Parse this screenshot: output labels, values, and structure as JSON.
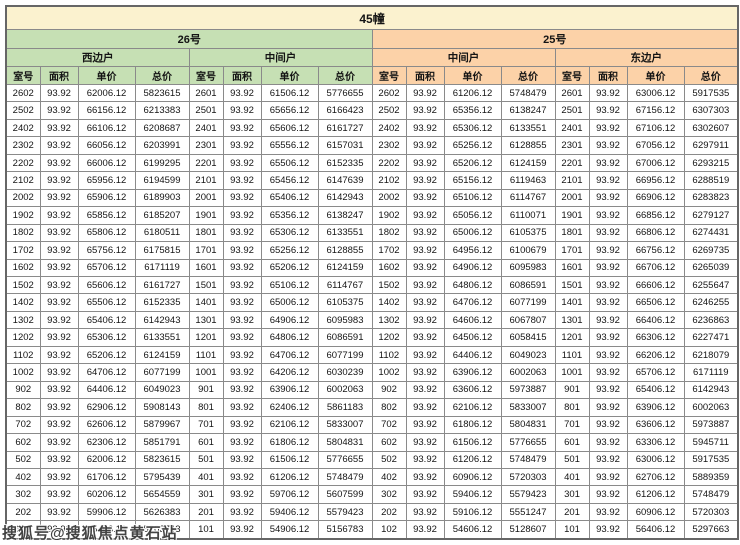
{
  "title": "45幢",
  "sections": [
    {
      "label": "26号",
      "groups": [
        "西边户",
        "中间户"
      ]
    },
    {
      "label": "25号",
      "groups": [
        "中间户",
        "东边户"
      ]
    }
  ],
  "column_headers": [
    "室号",
    "面积",
    "单价",
    "总价"
  ],
  "rows": [
    [
      "2602",
      "93.92",
      "62006.12",
      "5823615",
      "2601",
      "93.92",
      "61506.12",
      "5776655",
      "2602",
      "93.92",
      "61206.12",
      "5748479",
      "2601",
      "93.92",
      "63006.12",
      "5917535"
    ],
    [
      "2502",
      "93.92",
      "66156.12",
      "6213383",
      "2501",
      "93.92",
      "65656.12",
      "6166423",
      "2502",
      "93.92",
      "65356.12",
      "6138247",
      "2501",
      "93.92",
      "67156.12",
      "6307303"
    ],
    [
      "2402",
      "93.92",
      "66106.12",
      "6208687",
      "2401",
      "93.92",
      "65606.12",
      "6161727",
      "2402",
      "93.92",
      "65306.12",
      "6133551",
      "2401",
      "93.92",
      "67106.12",
      "6302607"
    ],
    [
      "2302",
      "93.92",
      "66056.12",
      "6203991",
      "2301",
      "93.92",
      "65556.12",
      "6157031",
      "2302",
      "93.92",
      "65256.12",
      "6128855",
      "2301",
      "93.92",
      "67056.12",
      "6297911"
    ],
    [
      "2202",
      "93.92",
      "66006.12",
      "6199295",
      "2201",
      "93.92",
      "65506.12",
      "6152335",
      "2202",
      "93.92",
      "65206.12",
      "6124159",
      "2201",
      "93.92",
      "67006.12",
      "6293215"
    ],
    [
      "2102",
      "93.92",
      "65956.12",
      "6194599",
      "2101",
      "93.92",
      "65456.12",
      "6147639",
      "2102",
      "93.92",
      "65156.12",
      "6119463",
      "2101",
      "93.92",
      "66956.12",
      "6288519"
    ],
    [
      "2002",
      "93.92",
      "65906.12",
      "6189903",
      "2001",
      "93.92",
      "65406.12",
      "6142943",
      "2002",
      "93.92",
      "65106.12",
      "6114767",
      "2001",
      "93.92",
      "66906.12",
      "6283823"
    ],
    [
      "1902",
      "93.92",
      "65856.12",
      "6185207",
      "1901",
      "93.92",
      "65356.12",
      "6138247",
      "1902",
      "93.92",
      "65056.12",
      "6110071",
      "1901",
      "93.92",
      "66856.12",
      "6279127"
    ],
    [
      "1802",
      "93.92",
      "65806.12",
      "6180511",
      "1801",
      "93.92",
      "65306.12",
      "6133551",
      "1802",
      "93.92",
      "65006.12",
      "6105375",
      "1801",
      "93.92",
      "66806.12",
      "6274431"
    ],
    [
      "1702",
      "93.92",
      "65756.12",
      "6175815",
      "1701",
      "93.92",
      "65256.12",
      "6128855",
      "1702",
      "93.92",
      "64956.12",
      "6100679",
      "1701",
      "93.92",
      "66756.12",
      "6269735"
    ],
    [
      "1602",
      "93.92",
      "65706.12",
      "6171119",
      "1601",
      "93.92",
      "65206.12",
      "6124159",
      "1602",
      "93.92",
      "64906.12",
      "6095983",
      "1601",
      "93.92",
      "66706.12",
      "6265039"
    ],
    [
      "1502",
      "93.92",
      "65606.12",
      "6161727",
      "1501",
      "93.92",
      "65106.12",
      "6114767",
      "1502",
      "93.92",
      "64806.12",
      "6086591",
      "1501",
      "93.92",
      "66606.12",
      "6255647"
    ],
    [
      "1402",
      "93.92",
      "65506.12",
      "6152335",
      "1401",
      "93.92",
      "65006.12",
      "6105375",
      "1402",
      "93.92",
      "64706.12",
      "6077199",
      "1401",
      "93.92",
      "66506.12",
      "6246255"
    ],
    [
      "1302",
      "93.92",
      "65406.12",
      "6142943",
      "1301",
      "93.92",
      "64906.12",
      "6095983",
      "1302",
      "93.92",
      "64606.12",
      "6067807",
      "1301",
      "93.92",
      "66406.12",
      "6236863"
    ],
    [
      "1202",
      "93.92",
      "65306.12",
      "6133551",
      "1201",
      "93.92",
      "64806.12",
      "6086591",
      "1202",
      "93.92",
      "64506.12",
      "6058415",
      "1201",
      "93.92",
      "66306.12",
      "6227471"
    ],
    [
      "1102",
      "93.92",
      "65206.12",
      "6124159",
      "1101",
      "93.92",
      "64706.12",
      "6077199",
      "1102",
      "93.92",
      "64406.12",
      "6049023",
      "1101",
      "93.92",
      "66206.12",
      "6218079"
    ],
    [
      "1002",
      "93.92",
      "64706.12",
      "6077199",
      "1001",
      "93.92",
      "64206.12",
      "6030239",
      "1002",
      "93.92",
      "63906.12",
      "6002063",
      "1001",
      "93.92",
      "65706.12",
      "6171119"
    ],
    [
      "902",
      "93.92",
      "64406.12",
      "6049023",
      "901",
      "93.92",
      "63906.12",
      "6002063",
      "902",
      "93.92",
      "63606.12",
      "5973887",
      "901",
      "93.92",
      "65406.12",
      "6142943"
    ],
    [
      "802",
      "93.92",
      "62906.12",
      "5908143",
      "801",
      "93.92",
      "62406.12",
      "5861183",
      "802",
      "93.92",
      "62106.12",
      "5833007",
      "801",
      "93.92",
      "63906.12",
      "6002063"
    ],
    [
      "702",
      "93.92",
      "62606.12",
      "5879967",
      "701",
      "93.92",
      "62106.12",
      "5833007",
      "702",
      "93.92",
      "61806.12",
      "5804831",
      "701",
      "93.92",
      "63606.12",
      "5973887"
    ],
    [
      "602",
      "93.92",
      "62306.12",
      "5851791",
      "601",
      "93.92",
      "61806.12",
      "5804831",
      "602",
      "93.92",
      "61506.12",
      "5776655",
      "601",
      "93.92",
      "63306.12",
      "5945711"
    ],
    [
      "502",
      "93.92",
      "62006.12",
      "5823615",
      "501",
      "93.92",
      "61506.12",
      "5776655",
      "502",
      "93.92",
      "61206.12",
      "5748479",
      "501",
      "93.92",
      "63006.12",
      "5917535"
    ],
    [
      "402",
      "93.92",
      "61706.12",
      "5795439",
      "401",
      "93.92",
      "61206.12",
      "5748479",
      "402",
      "93.92",
      "60906.12",
      "5720303",
      "401",
      "93.92",
      "62706.12",
      "5889359"
    ],
    [
      "302",
      "93.92",
      "60206.12",
      "5654559",
      "301",
      "93.92",
      "59706.12",
      "5607599",
      "302",
      "93.92",
      "59406.12",
      "5579423",
      "301",
      "93.92",
      "61206.12",
      "5748479"
    ],
    [
      "202",
      "93.92",
      "59906.12",
      "5626383",
      "201",
      "93.92",
      "59406.12",
      "5579423",
      "202",
      "93.92",
      "59106.12",
      "5551247",
      "201",
      "93.92",
      "60906.12",
      "5720303"
    ],
    [
      "102",
      "93.92",
      "55406.12",
      "5203743",
      "101",
      "93.92",
      "54906.12",
      "5156783",
      "102",
      "93.92",
      "54606.12",
      "5128607",
      "101",
      "93.92",
      "56406.12",
      "5297663"
    ]
  ],
  "watermark": "搜狐号@搜狐焦点黄石站",
  "colors": {
    "title_bg": "#fbf2cf",
    "section_26_bg": "#c6e0b4",
    "section_25_bg": "#fcd2a8",
    "border": "#8a8a8a"
  }
}
